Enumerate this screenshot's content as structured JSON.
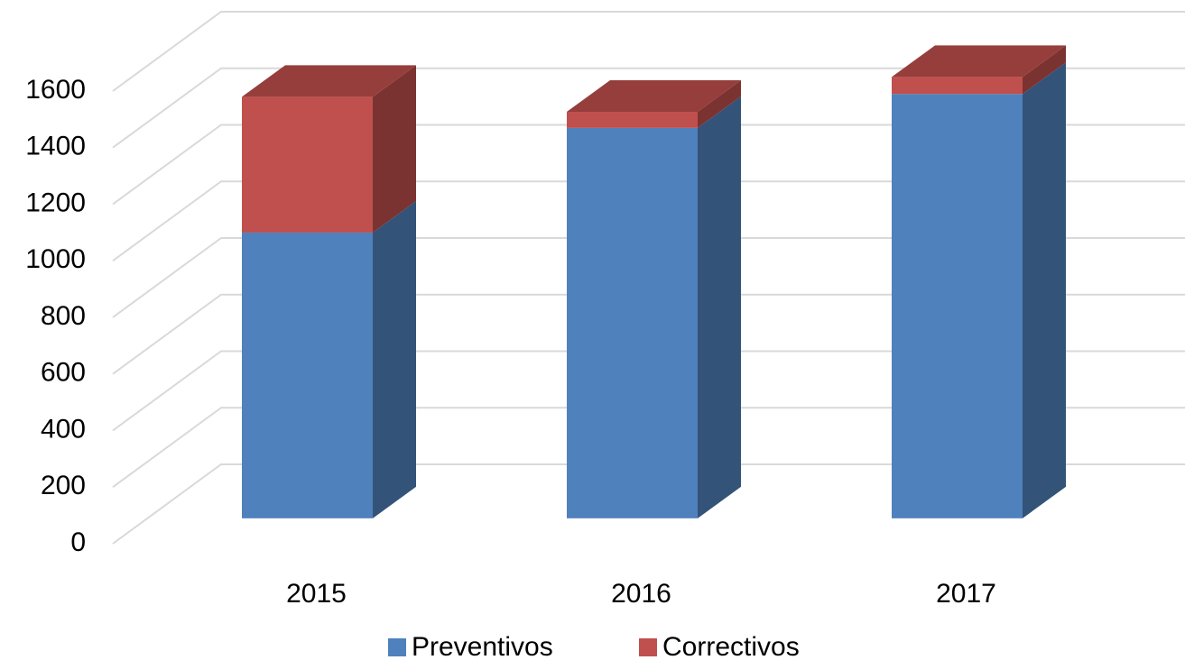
{
  "chart_data": {
    "type": "bar3d_stacked",
    "categories": [
      "2015",
      "2016",
      "2017"
    ],
    "series": [
      {
        "name": "Preventivos",
        "color": "#4f81bd",
        "values": [
          1010,
          1380,
          1500
        ]
      },
      {
        "name": "Correctivos",
        "color": "#c0504d",
        "values": [
          480,
          57,
          60
        ]
      }
    ],
    "ylim": [
      0,
      1600
    ],
    "yticks": [
      0,
      200,
      400,
      600,
      800,
      1000,
      1200,
      1400,
      1600
    ],
    "grid": true,
    "legend": "bottom"
  }
}
